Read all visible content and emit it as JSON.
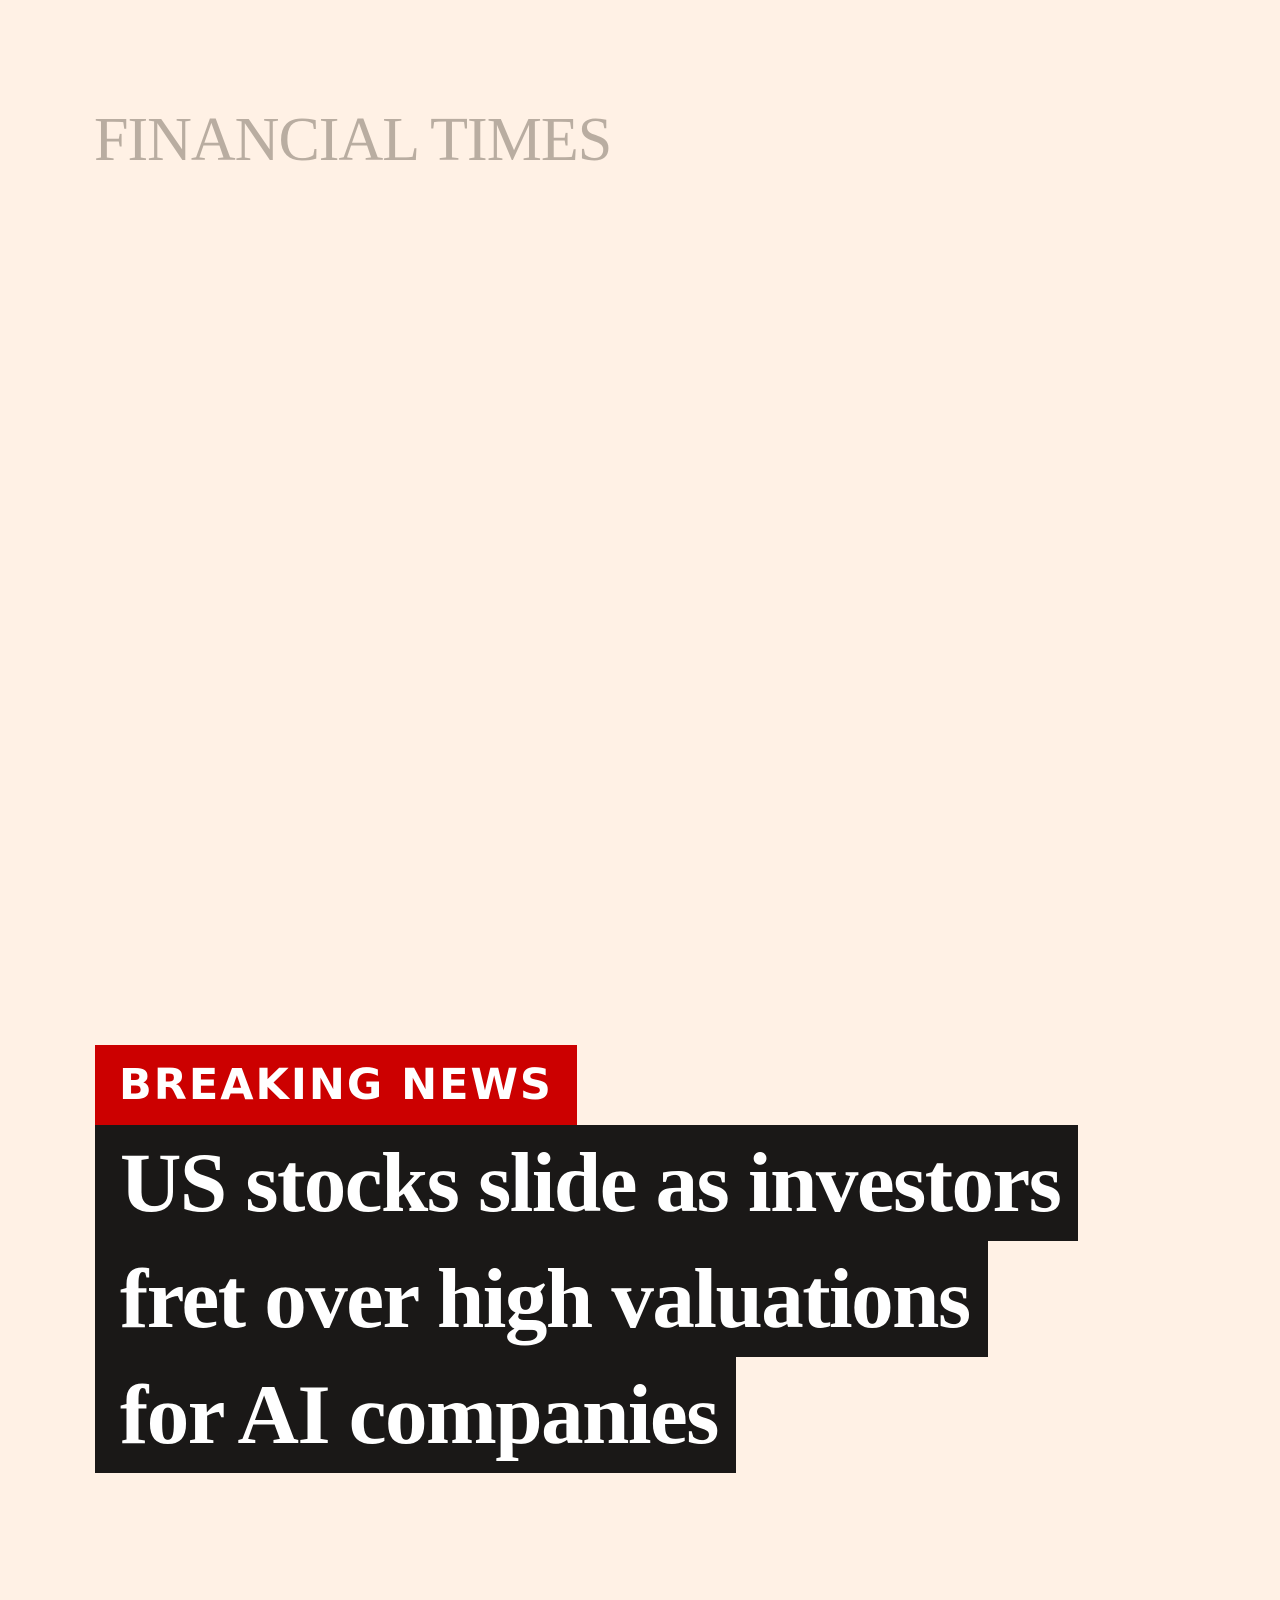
{
  "brand": {
    "masthead": "FINANCIAL TIMES"
  },
  "badge": {
    "label": "BREAKING NEWS"
  },
  "headline": {
    "lines": [
      "US stocks slide as investors",
      "fret over high valuations",
      "for AI companies"
    ]
  },
  "colors": {
    "background": "#FFF1E5",
    "masthead": "#B9ADA1",
    "badge": "#CC0000",
    "headline_bg": "#1A1817",
    "headline_text": "#FFFFFF"
  }
}
